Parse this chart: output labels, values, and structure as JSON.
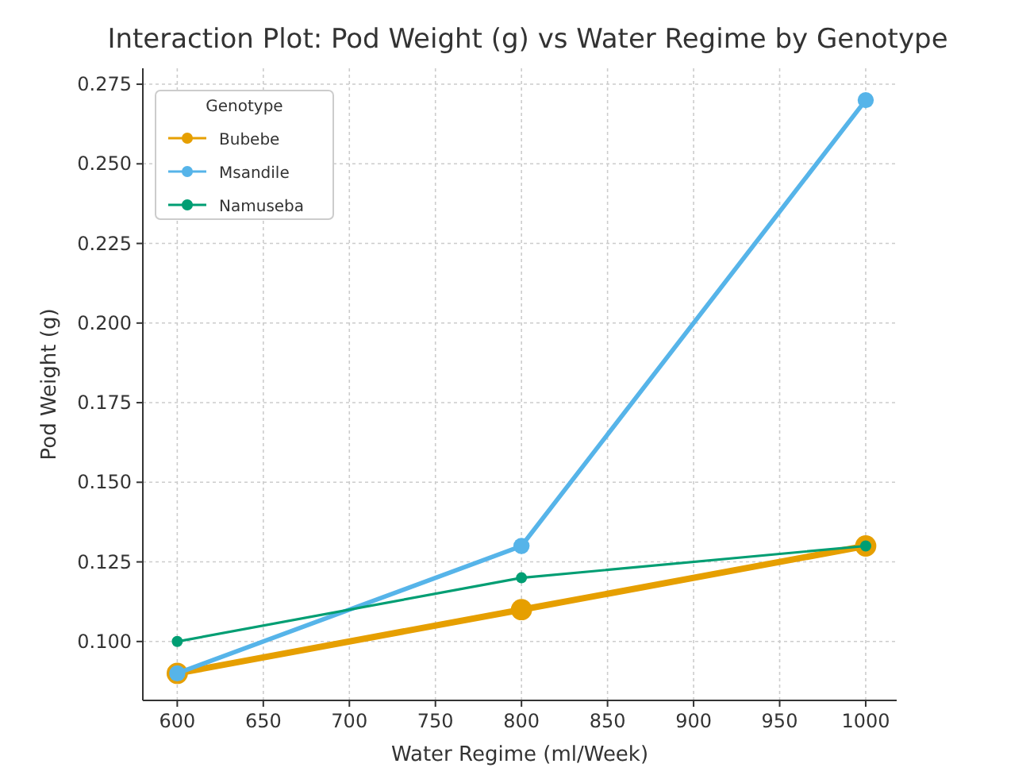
{
  "chart_data": {
    "type": "line",
    "title": "Interaction Plot: Pod Weight (g) vs Water Regime by Genotype",
    "xlabel": "Water Regime (ml/Week)",
    "ylabel": "Pod Weight (g)",
    "legend_title": "Genotype",
    "x": [
      600,
      800,
      1000
    ],
    "series": [
      {
        "name": "Bubebe",
        "color": "#e69f00",
        "values": [
          0.09,
          0.11,
          0.13
        ]
      },
      {
        "name": "Msandile",
        "color": "#56b4e9",
        "values": [
          0.09,
          0.13,
          0.27
        ]
      },
      {
        "name": "Namuseba",
        "color": "#009e73",
        "values": [
          0.1,
          0.12,
          0.13
        ]
      }
    ],
    "xlim": [
      580,
      1018
    ],
    "xticks": [
      600,
      650,
      700,
      750,
      800,
      850,
      900,
      950,
      1000
    ],
    "ylim": [
      0.0815,
      0.28
    ],
    "yticks": [
      {
        "value": 0.1,
        "label": "0.100"
      },
      {
        "value": 0.125,
        "label": "0.125"
      },
      {
        "value": 0.15,
        "label": "0.150"
      },
      {
        "value": 0.175,
        "label": "0.175"
      },
      {
        "value": 0.2,
        "label": "0.200"
      },
      {
        "value": 0.225,
        "label": "0.225"
      },
      {
        "value": 0.25,
        "label": "0.250"
      },
      {
        "value": 0.275,
        "label": "0.275"
      }
    ],
    "grid": true,
    "legend": "top left",
    "marker": "circle",
    "line_style": "solid"
  }
}
